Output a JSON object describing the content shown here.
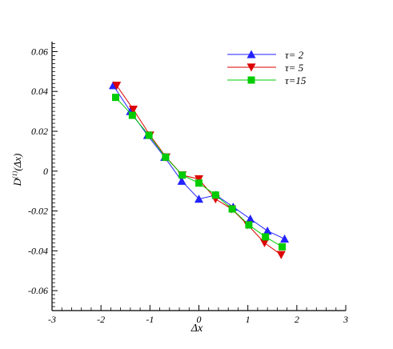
{
  "chart_data": {
    "type": "line",
    "title": "",
    "xlabel": "Δx",
    "ylabel_main": "D",
    "ylabel_sup": "(1)",
    "ylabel_tail": "(Δx)",
    "xlim": [
      -3,
      3
    ],
    "ylim": [
      -0.07,
      0.065
    ],
    "x_ticks": [
      -3,
      -2,
      -1,
      0,
      1,
      2,
      3
    ],
    "x_tick_labels": [
      "-3",
      "-2",
      "-1",
      "0",
      "1",
      "2",
      "3"
    ],
    "y_ticks": [
      -0.06,
      -0.04,
      -0.02,
      0,
      0.02,
      0.04,
      0.06
    ],
    "y_tick_labels": [
      "-0.06",
      "-0.04",
      "-0.02",
      "0",
      "0.02",
      "0.04",
      "0.06"
    ],
    "grid": false,
    "legend_position": "top-right",
    "series": [
      {
        "name": "τ= 2",
        "color": "#2222ff",
        "marker": "triangle-up",
        "x": [
          -1.75,
          -1.4,
          -1.05,
          -0.7,
          -0.35,
          0,
          0.35,
          0.7,
          1.05,
          1.4,
          1.75
        ],
        "y": [
          0.043,
          0.03,
          0.018,
          0.007,
          -0.005,
          -0.014,
          -0.012,
          -0.018,
          -0.024,
          -0.03,
          -0.034
        ]
      },
      {
        "name": "τ= 5",
        "color": "#dd0000",
        "marker": "triangle-down",
        "x": [
          -1.68,
          -1.34,
          -1.0,
          -0.67,
          -0.34,
          0,
          0.34,
          0.67,
          1.0,
          1.34,
          1.68
        ],
        "y": [
          0.043,
          0.031,
          0.018,
          0.007,
          -0.002,
          -0.004,
          -0.014,
          -0.019,
          -0.027,
          -0.036,
          -0.042
        ]
      },
      {
        "name": "τ=15",
        "color": "#00cc00",
        "marker": "square",
        "x": [
          -1.7,
          -1.36,
          -1.02,
          -0.68,
          -0.34,
          0,
          0.34,
          0.68,
          1.02,
          1.36,
          1.7
        ],
        "y": [
          0.037,
          0.028,
          0.018,
          0.007,
          -0.002,
          -0.006,
          -0.012,
          -0.019,
          -0.027,
          -0.033,
          -0.038
        ]
      }
    ]
  }
}
